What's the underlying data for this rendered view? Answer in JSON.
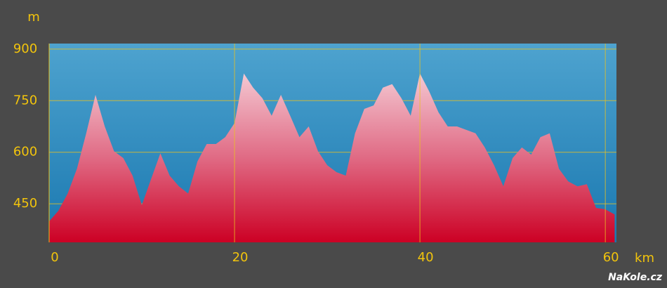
{
  "chart_data": {
    "type": "area",
    "y_unit": "m",
    "x_unit": "km",
    "watermark": "NaKole.cz",
    "x": [
      0,
      1,
      2,
      3,
      4,
      5,
      6,
      7,
      8,
      9,
      10,
      11,
      12,
      13,
      14,
      15,
      16,
      17,
      18,
      19,
      20,
      21,
      22,
      23,
      24,
      25,
      26,
      27,
      28,
      29,
      30,
      31,
      32,
      33,
      34,
      35,
      36,
      37,
      38,
      39,
      40,
      41,
      42,
      43,
      44,
      45,
      46,
      47,
      48,
      49,
      50,
      51,
      52,
      53,
      54,
      55,
      56,
      57,
      58,
      59,
      60,
      61
    ],
    "values": [
      399,
      430,
      480,
      552,
      655,
      767,
      675,
      603,
      583,
      532,
      446,
      522,
      597,
      532,
      501,
      480,
      573,
      624,
      624,
      644,
      685,
      829,
      788,
      757,
      706,
      767,
      706,
      644,
      675,
      603,
      562,
      542,
      532,
      655,
      726,
      736,
      788,
      798,
      757,
      706,
      829,
      777,
      716,
      675,
      675,
      665,
      655,
      614,
      562,
      501,
      583,
      614,
      593,
      644,
      655,
      552,
      515,
      501,
      507,
      438,
      434,
      419
    ],
    "xlim": [
      0,
      61.2
    ],
    "ylim": [
      338,
      916
    ],
    "xticks": [
      0,
      20,
      40,
      60
    ],
    "yticks": [
      900,
      750,
      600,
      450
    ],
    "grid": true
  }
}
